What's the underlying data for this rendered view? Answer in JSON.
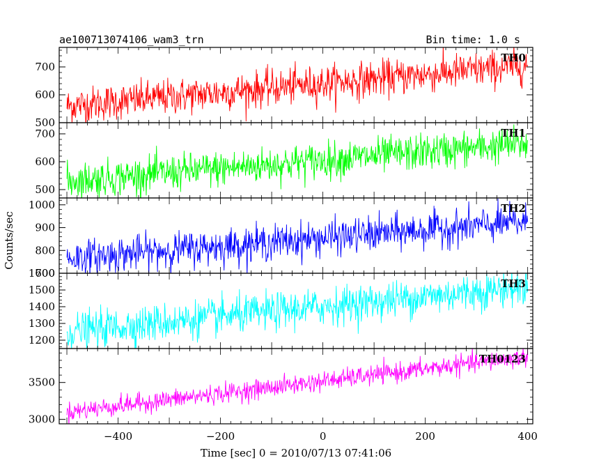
{
  "header": {
    "title": "ae100713074106_wam3_trn",
    "bin_time": "Bin time: 1.0 s"
  },
  "chart_data": {
    "type": "line",
    "x_label": "Time [sec] 0 = 2010/07/13 07:41:06",
    "y_label": "Counts/sec",
    "xlim": [
      -515,
      410
    ],
    "x_ticks": [
      -400,
      -200,
      0,
      200,
      400
    ],
    "x_tick_labels": [
      "−400",
      "−200",
      "0",
      "200",
      "400"
    ],
    "panels": [
      {
        "name": "TH0",
        "color": "#ff0000",
        "ylim": [
          500,
          770
        ],
        "y_ticks": [
          500,
          600,
          700
        ],
        "y_tick_labels": [
          "500",
          "600",
          "700"
        ],
        "trend_start": 560,
        "trend_end": 705,
        "noise": 32
      },
      {
        "name": "TH1",
        "color": "#00ff00",
        "ylim": [
          470,
          740
        ],
        "y_ticks": [
          500,
          600,
          700
        ],
        "y_tick_labels": [
          "500",
          "600",
          "700"
        ],
        "trend_start": 530,
        "trend_end": 665,
        "noise": 32
      },
      {
        "name": "TH2",
        "color": "#0000ff",
        "ylim": [
          700,
          1030
        ],
        "y_ticks": [
          700,
          800,
          900,
          1000
        ],
        "y_tick_labels": [
          "700",
          "800",
          "900",
          "1000"
        ],
        "trend_start": 765,
        "trend_end": 925,
        "noise": 38
      },
      {
        "name": "TH3",
        "color": "#00ffff",
        "ylim": [
          1150,
          1600
        ],
        "y_ticks": [
          1200,
          1300,
          1400,
          1500,
          1600
        ],
        "y_tick_labels": [
          "1200",
          "1300",
          "1400",
          "1500",
          "1600"
        ],
        "trend_start": 1250,
        "trend_end": 1520,
        "noise": 55
      },
      {
        "name": "TH0123",
        "color": "#ff00ff",
        "ylim": [
          2940,
          3960
        ],
        "y_ticks": [
          3000,
          3500
        ],
        "y_tick_labels": [
          "3000",
          "3500"
        ],
        "trend_start": 3100,
        "trend_end": 3850,
        "noise": 65
      }
    ]
  }
}
